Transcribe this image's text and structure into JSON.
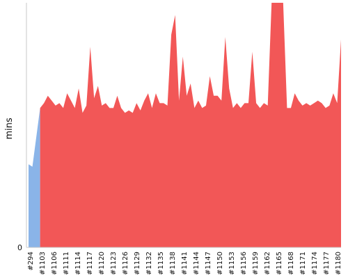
{
  "chart_data": {
    "type": "area",
    "title": "",
    "xlabel": "",
    "ylabel": "mins",
    "y_tick_labels": [
      "0"
    ],
    "ylim": [
      0,
      100
    ],
    "grid": false,
    "legend": "none",
    "x_tick_labels": [
      "#294",
      "#1103",
      "#1106",
      "#1111",
      "#1114",
      "#1117",
      "#1120",
      "#1123",
      "#1126",
      "#1129",
      "#1132",
      "#1135",
      "#1138",
      "#1141",
      "#1144",
      "#1147",
      "#1150",
      "#1153",
      "#1156",
      "#1159",
      "#1162",
      "#1165",
      "#1168",
      "#1171",
      "#1174",
      "#1177",
      "#1180"
    ],
    "series": [
      {
        "color": "#8ab4e8",
        "points": [
          [
            0,
            34
          ],
          [
            1,
            33
          ],
          [
            2,
            45
          ],
          [
            3,
            57
          ]
        ]
      },
      {
        "color": "#f25757",
        "points": [
          [
            3,
            57
          ],
          [
            4,
            59
          ],
          [
            5,
            62
          ],
          [
            6,
            60
          ],
          [
            7,
            58
          ],
          [
            8,
            59
          ],
          [
            9,
            57
          ],
          [
            10,
            63
          ],
          [
            11,
            60
          ],
          [
            12,
            57
          ],
          [
            13,
            65
          ],
          [
            14,
            55
          ],
          [
            15,
            58
          ],
          [
            16,
            82
          ],
          [
            17,
            61
          ],
          [
            18,
            66
          ],
          [
            19,
            58
          ],
          [
            20,
            59
          ],
          [
            21,
            57
          ],
          [
            22,
            57
          ],
          [
            23,
            62
          ],
          [
            24,
            57
          ],
          [
            25,
            55
          ],
          [
            26,
            56
          ],
          [
            27,
            55
          ],
          [
            28,
            59
          ],
          [
            29,
            56
          ],
          [
            30,
            60
          ],
          [
            31,
            63
          ],
          [
            32,
            57
          ],
          [
            33,
            63
          ],
          [
            34,
            59
          ],
          [
            35,
            59
          ],
          [
            36,
            58
          ],
          [
            37,
            87
          ],
          [
            38,
            95
          ],
          [
            39,
            60
          ],
          [
            40,
            78
          ],
          [
            41,
            62
          ],
          [
            42,
            67
          ],
          [
            43,
            57
          ],
          [
            44,
            60
          ],
          [
            45,
            57
          ],
          [
            46,
            58
          ],
          [
            47,
            70
          ],
          [
            48,
            62
          ],
          [
            49,
            62
          ],
          [
            50,
            60
          ],
          [
            51,
            86
          ],
          [
            52,
            65
          ],
          [
            53,
            57
          ],
          [
            54,
            59
          ],
          [
            55,
            57
          ],
          [
            56,
            59
          ],
          [
            57,
            59
          ],
          [
            58,
            80
          ],
          [
            59,
            59
          ],
          [
            60,
            57
          ],
          [
            61,
            59
          ],
          [
            62,
            58
          ],
          [
            63,
            100
          ],
          [
            64,
            100
          ],
          [
            65,
            100
          ],
          [
            66,
            100
          ],
          [
            67,
            57
          ],
          [
            68,
            57
          ],
          [
            69,
            63
          ],
          [
            70,
            60
          ],
          [
            71,
            58
          ],
          [
            72,
            59
          ],
          [
            73,
            58
          ],
          [
            74,
            59
          ],
          [
            75,
            60
          ],
          [
            76,
            59
          ],
          [
            77,
            57
          ],
          [
            78,
            58
          ],
          [
            79,
            63
          ],
          [
            80,
            59
          ],
          [
            81,
            85
          ]
        ]
      }
    ]
  }
}
